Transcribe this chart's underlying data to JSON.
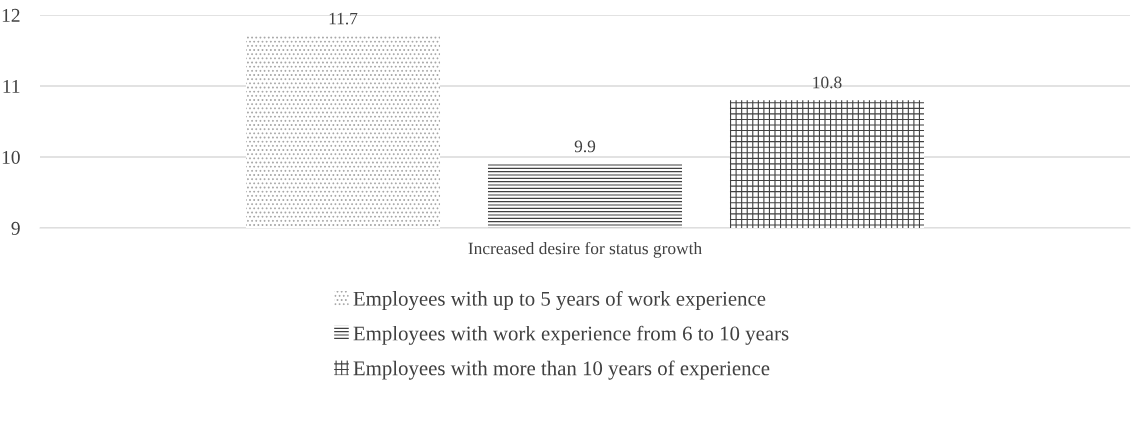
{
  "chart_data": {
    "type": "bar",
    "categories": [
      "Increased desire for status growth"
    ],
    "series": [
      {
        "name": "Employees with up to 5 years of work experience",
        "color": "#a6a6a6",
        "values": [
          11.7
        ]
      },
      {
        "name": "Employees with work experience from 6 to 10 years",
        "color": "#404040",
        "values": [
          9.9
        ]
      },
      {
        "name": "Employees with more than 10 years of experience",
        "color": "#404040",
        "values": [
          10.8
        ]
      }
    ],
    "ylim": [
      9,
      12
    ],
    "yticks": [
      9,
      10,
      11,
      12
    ],
    "grid": "y",
    "legend": "bottom",
    "data_labels": true
  }
}
